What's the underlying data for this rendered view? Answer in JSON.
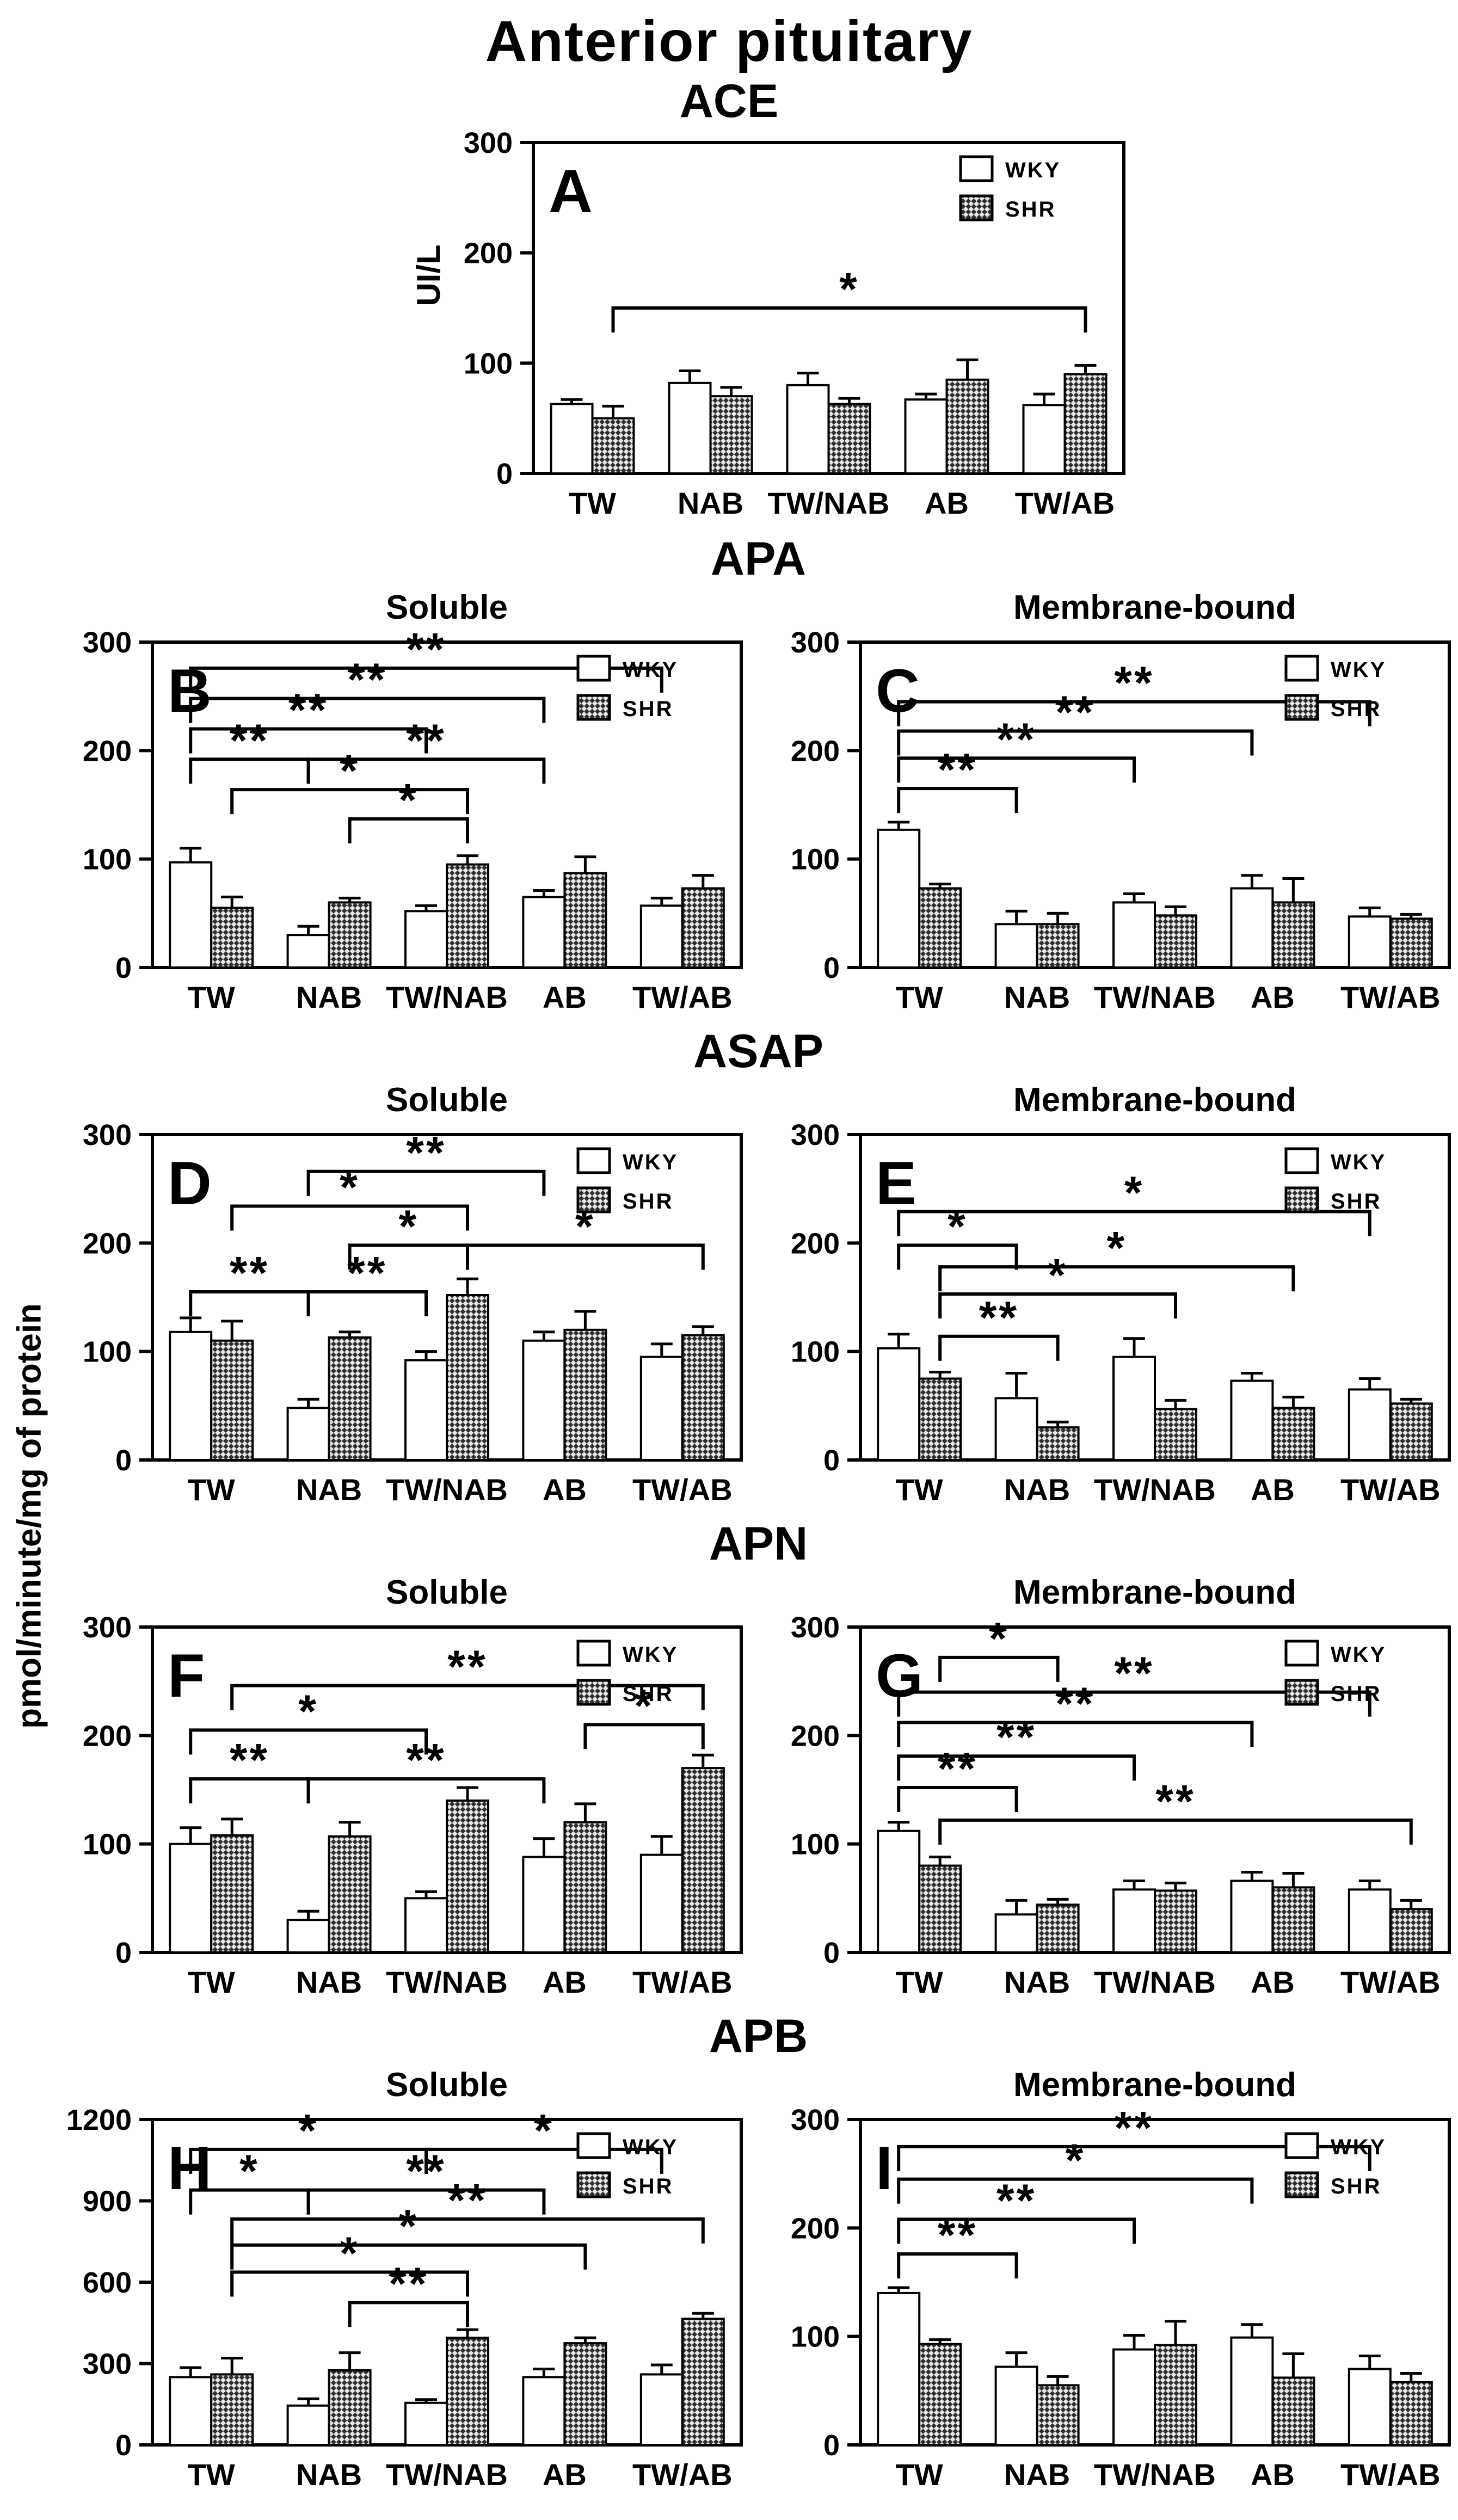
{
  "title": "Anterior pituitary",
  "shared_ylabel": "pmol/minute/mg of protein",
  "legend": {
    "wky": "WKY",
    "shr": "SHR"
  },
  "colors": {
    "background": "#ffffff",
    "axis": "#000000",
    "wky_fill": "#ffffff",
    "shr_pattern_dark": "#2f2f2f",
    "shr_pattern_light": "#e8e8e8"
  },
  "sections": [
    {
      "title": "ACE"
    },
    {
      "title": "APA"
    },
    {
      "title": "ASAP"
    },
    {
      "title": "APN"
    },
    {
      "title": "APB"
    }
  ],
  "categories": [
    "TW",
    "NAB",
    "TW/NAB",
    "AB",
    "TW/AB"
  ],
  "chart_data": [
    {
      "panel": "A",
      "section": "ACE",
      "subtitle": "",
      "type": "bar",
      "ylabel": "UI/L",
      "ylim": [
        0,
        300
      ],
      "yticks": [
        0,
        100,
        200,
        300
      ],
      "categories": [
        "TW",
        "NAB",
        "TW/NAB",
        "AB",
        "TW/AB"
      ],
      "series": [
        {
          "name": "WKY",
          "values": [
            63,
            82,
            80,
            67,
            62
          ],
          "errors": [
            4,
            11,
            11,
            5,
            10
          ]
        },
        {
          "name": "SHR",
          "values": [
            50,
            70,
            63,
            85,
            90
          ],
          "errors": [
            11,
            8,
            5,
            18,
            8
          ]
        }
      ],
      "significance": [
        {
          "a": [
            0,
            "s"
          ],
          "b": [
            4,
            "s"
          ],
          "y": 150,
          "label": "*"
        }
      ]
    },
    {
      "panel": "B",
      "section": "APA",
      "subtitle": "Soluble",
      "type": "bar",
      "ylabel": "",
      "ylim": [
        0,
        300
      ],
      "yticks": [
        0,
        100,
        200,
        300
      ],
      "categories": [
        "TW",
        "NAB",
        "TW/NAB",
        "AB",
        "TW/AB"
      ],
      "series": [
        {
          "name": "WKY",
          "values": [
            97,
            30,
            52,
            65,
            57
          ],
          "errors": [
            13,
            8,
            5,
            6,
            7
          ]
        },
        {
          "name": "SHR",
          "values": [
            55,
            60,
            95,
            87,
            73
          ],
          "errors": [
            10,
            4,
            8,
            15,
            12
          ]
        }
      ],
      "significance": [
        {
          "a": [
            0,
            "w"
          ],
          "b": [
            4,
            "w"
          ],
          "y": 276,
          "label": "**"
        },
        {
          "a": [
            0,
            "w"
          ],
          "b": [
            3,
            "w"
          ],
          "y": 248,
          "label": "**"
        },
        {
          "a": [
            0,
            "w"
          ],
          "b": [
            2,
            "w"
          ],
          "y": 220,
          "label": "**"
        },
        {
          "a": [
            0,
            "w"
          ],
          "b": [
            1,
            "w"
          ],
          "y": 192,
          "label": "**"
        },
        {
          "a": [
            1,
            "w"
          ],
          "b": [
            3,
            "w"
          ],
          "y": 192,
          "label": "**"
        },
        {
          "a": [
            0,
            "s"
          ],
          "b": [
            2,
            "s"
          ],
          "y": 164,
          "label": "*"
        },
        {
          "a": [
            1,
            "s"
          ],
          "b": [
            2,
            "s"
          ],
          "y": 137,
          "label": "*"
        }
      ]
    },
    {
      "panel": "C",
      "section": "APA",
      "subtitle": "Membrane-bound",
      "type": "bar",
      "ylabel": "",
      "ylim": [
        0,
        300
      ],
      "yticks": [
        0,
        100,
        200,
        300
      ],
      "categories": [
        "TW",
        "NAB",
        "TW/NAB",
        "AB",
        "TW/AB"
      ],
      "series": [
        {
          "name": "WKY",
          "values": [
            127,
            40,
            60,
            73,
            47
          ],
          "errors": [
            7,
            12,
            8,
            12,
            8
          ]
        },
        {
          "name": "SHR",
          "values": [
            73,
            40,
            48,
            60,
            45
          ],
          "errors": [
            4,
            10,
            8,
            22,
            4
          ]
        }
      ],
      "significance": [
        {
          "a": [
            0,
            "w"
          ],
          "b": [
            4,
            "w"
          ],
          "y": 245,
          "label": "**"
        },
        {
          "a": [
            0,
            "w"
          ],
          "b": [
            3,
            "w"
          ],
          "y": 218,
          "label": "**"
        },
        {
          "a": [
            0,
            "w"
          ],
          "b": [
            2,
            "w"
          ],
          "y": 193,
          "label": "**"
        },
        {
          "a": [
            0,
            "w"
          ],
          "b": [
            1,
            "w"
          ],
          "y": 165,
          "label": "**"
        }
      ]
    },
    {
      "panel": "D",
      "section": "ASAP",
      "subtitle": "Soluble",
      "type": "bar",
      "ylabel": "",
      "ylim": [
        0,
        300
      ],
      "yticks": [
        0,
        100,
        200,
        300
      ],
      "categories": [
        "TW",
        "NAB",
        "TW/NAB",
        "AB",
        "TW/AB"
      ],
      "series": [
        {
          "name": "WKY",
          "values": [
            118,
            48,
            92,
            110,
            95
          ],
          "errors": [
            13,
            8,
            8,
            8,
            12
          ]
        },
        {
          "name": "SHR",
          "values": [
            110,
            113,
            152,
            120,
            115
          ],
          "errors": [
            18,
            5,
            15,
            17,
            8
          ]
        }
      ],
      "significance": [
        {
          "a": [
            1,
            "w"
          ],
          "b": [
            3,
            "w"
          ],
          "y": 266,
          "label": "**"
        },
        {
          "a": [
            0,
            "s"
          ],
          "b": [
            2,
            "s"
          ],
          "y": 234,
          "label": "*"
        },
        {
          "a": [
            1,
            "s"
          ],
          "b": [
            2,
            "s"
          ],
          "y": 198,
          "label": "*"
        },
        {
          "a": [
            2,
            "s"
          ],
          "b": [
            4,
            "s"
          ],
          "y": 198,
          "label": "*"
        },
        {
          "a": [
            0,
            "w"
          ],
          "b": [
            1,
            "w"
          ],
          "y": 155,
          "label": "**"
        },
        {
          "a": [
            1,
            "w"
          ],
          "b": [
            2,
            "w"
          ],
          "y": 155,
          "label": "**"
        }
      ]
    },
    {
      "panel": "E",
      "section": "ASAP",
      "subtitle": "Membrane-bound",
      "type": "bar",
      "ylabel": "",
      "ylim": [
        0,
        300
      ],
      "yticks": [
        0,
        100,
        200,
        300
      ],
      "categories": [
        "TW",
        "NAB",
        "TW/NAB",
        "AB",
        "TW/AB"
      ],
      "series": [
        {
          "name": "WKY",
          "values": [
            103,
            57,
            95,
            73,
            65
          ],
          "errors": [
            13,
            23,
            17,
            7,
            10
          ]
        },
        {
          "name": "SHR",
          "values": [
            75,
            30,
            47,
            48,
            52
          ],
          "errors": [
            6,
            5,
            8,
            10,
            4
          ]
        }
      ],
      "significance": [
        {
          "a": [
            0,
            "w"
          ],
          "b": [
            4,
            "w"
          ],
          "y": 229,
          "label": "*"
        },
        {
          "a": [
            0,
            "w"
          ],
          "b": [
            1,
            "w"
          ],
          "y": 198,
          "label": "*"
        },
        {
          "a": [
            0,
            "s"
          ],
          "b": [
            3,
            "s"
          ],
          "y": 178,
          "label": "*"
        },
        {
          "a": [
            0,
            "s"
          ],
          "b": [
            2,
            "s"
          ],
          "y": 153,
          "label": "*"
        },
        {
          "a": [
            0,
            "s"
          ],
          "b": [
            1,
            "s"
          ],
          "y": 114,
          "label": "**"
        }
      ]
    },
    {
      "panel": "F",
      "section": "APN",
      "subtitle": "Soluble",
      "type": "bar",
      "ylabel": "",
      "ylim": [
        0,
        300
      ],
      "yticks": [
        0,
        100,
        200,
        300
      ],
      "categories": [
        "TW",
        "NAB",
        "TW/NAB",
        "AB",
        "TW/AB"
      ],
      "series": [
        {
          "name": "WKY",
          "values": [
            100,
            30,
            50,
            88,
            90
          ],
          "errors": [
            15,
            8,
            6,
            17,
            17
          ]
        },
        {
          "name": "SHR",
          "values": [
            108,
            107,
            140,
            120,
            170
          ],
          "errors": [
            15,
            13,
            12,
            17,
            12
          ]
        }
      ],
      "significance": [
        {
          "a": [
            0,
            "s"
          ],
          "b": [
            4,
            "s"
          ],
          "y": 246,
          "label": "**"
        },
        {
          "a": [
            3,
            "s"
          ],
          "b": [
            4,
            "s"
          ],
          "y": 210,
          "label": "*"
        },
        {
          "a": [
            0,
            "w"
          ],
          "b": [
            2,
            "w"
          ],
          "y": 205,
          "label": "*"
        },
        {
          "a": [
            0,
            "w"
          ],
          "b": [
            1,
            "w"
          ],
          "y": 160,
          "label": "**"
        },
        {
          "a": [
            1,
            "w"
          ],
          "b": [
            3,
            "w"
          ],
          "y": 160,
          "label": "**"
        }
      ]
    },
    {
      "panel": "G",
      "section": "APN",
      "subtitle": "Membrane-bound",
      "type": "bar",
      "ylabel": "",
      "ylim": [
        0,
        300
      ],
      "yticks": [
        0,
        100,
        200,
        300
      ],
      "categories": [
        "TW",
        "NAB",
        "TW/NAB",
        "AB",
        "TW/AB"
      ],
      "series": [
        {
          "name": "WKY",
          "values": [
            112,
            35,
            58,
            66,
            58
          ],
          "errors": [
            8,
            13,
            8,
            8,
            8
          ]
        },
        {
          "name": "SHR",
          "values": [
            80,
            44,
            57,
            60,
            40
          ],
          "errors": [
            8,
            5,
            7,
            13,
            8
          ]
        }
      ],
      "significance": [
        {
          "a": [
            0,
            "s"
          ],
          "b": [
            1,
            "s"
          ],
          "y": 272,
          "label": "*"
        },
        {
          "a": [
            0,
            "w"
          ],
          "b": [
            4,
            "w"
          ],
          "y": 240,
          "label": "**"
        },
        {
          "a": [
            0,
            "w"
          ],
          "b": [
            3,
            "w"
          ],
          "y": 212,
          "label": "**"
        },
        {
          "a": [
            0,
            "w"
          ],
          "b": [
            2,
            "w"
          ],
          "y": 181,
          "label": "**"
        },
        {
          "a": [
            0,
            "w"
          ],
          "b": [
            1,
            "w"
          ],
          "y": 152,
          "label": "**"
        },
        {
          "a": [
            0,
            "s"
          ],
          "b": [
            4,
            "s"
          ],
          "y": 122,
          "label": "**"
        }
      ]
    },
    {
      "panel": "H",
      "section": "APB",
      "subtitle": "Soluble",
      "type": "bar",
      "ylabel": "",
      "ylim": [
        0,
        1200
      ],
      "yticks": [
        0,
        300,
        600,
        900,
        1200
      ],
      "categories": [
        "TW",
        "NAB",
        "TW/NAB",
        "AB",
        "TW/AB"
      ],
      "series": [
        {
          "name": "WKY",
          "values": [
            250,
            145,
            155,
            250,
            260
          ],
          "errors": [
            35,
            25,
            12,
            30,
            35
          ]
        },
        {
          "name": "SHR",
          "values": [
            260,
            275,
            395,
            375,
            465
          ],
          "errors": [
            60,
            65,
            30,
            20,
            20
          ]
        }
      ],
      "significance": [
        {
          "a": [
            0,
            "w"
          ],
          "b": [
            2,
            "w"
          ],
          "y": 1090,
          "label": "*"
        },
        {
          "a": [
            2,
            "w"
          ],
          "b": [
            4,
            "w"
          ],
          "y": 1090,
          "label": "*"
        },
        {
          "a": [
            0,
            "w"
          ],
          "b": [
            1,
            "w"
          ],
          "y": 940,
          "label": "*"
        },
        {
          "a": [
            1,
            "w"
          ],
          "b": [
            3,
            "w"
          ],
          "y": 940,
          "label": "**"
        },
        {
          "a": [
            0,
            "s"
          ],
          "b": [
            4,
            "s"
          ],
          "y": 833,
          "label": "**"
        },
        {
          "a": [
            0,
            "s"
          ],
          "b": [
            3,
            "s"
          ],
          "y": 737,
          "label": "*"
        },
        {
          "a": [
            0,
            "s"
          ],
          "b": [
            2,
            "s"
          ],
          "y": 637,
          "label": "*"
        },
        {
          "a": [
            1,
            "s"
          ],
          "b": [
            2,
            "s"
          ],
          "y": 525,
          "label": "**"
        }
      ]
    },
    {
      "panel": "I",
      "section": "APB",
      "subtitle": "Membrane-bound",
      "type": "bar",
      "ylabel": "",
      "ylim": [
        0,
        300
      ],
      "yticks": [
        0,
        100,
        200,
        300
      ],
      "categories": [
        "TW",
        "NAB",
        "TW/NAB",
        "AB",
        "TW/AB"
      ],
      "series": [
        {
          "name": "WKY",
          "values": [
            140,
            72,
            88,
            99,
            70
          ],
          "errors": [
            5,
            13,
            13,
            12,
            12
          ]
        },
        {
          "name": "SHR",
          "values": [
            93,
            55,
            92,
            62,
            58
          ],
          "errors": [
            4,
            8,
            22,
            22,
            8
          ]
        }
      ],
      "significance": [
        {
          "a": [
            0,
            "w"
          ],
          "b": [
            4,
            "w"
          ],
          "y": 275,
          "label": "**"
        },
        {
          "a": [
            0,
            "w"
          ],
          "b": [
            3,
            "w"
          ],
          "y": 245,
          "label": "*"
        },
        {
          "a": [
            0,
            "w"
          ],
          "b": [
            2,
            "w"
          ],
          "y": 208,
          "label": "**"
        },
        {
          "a": [
            0,
            "w"
          ],
          "b": [
            1,
            "w"
          ],
          "y": 176,
          "label": "**"
        }
      ]
    }
  ]
}
